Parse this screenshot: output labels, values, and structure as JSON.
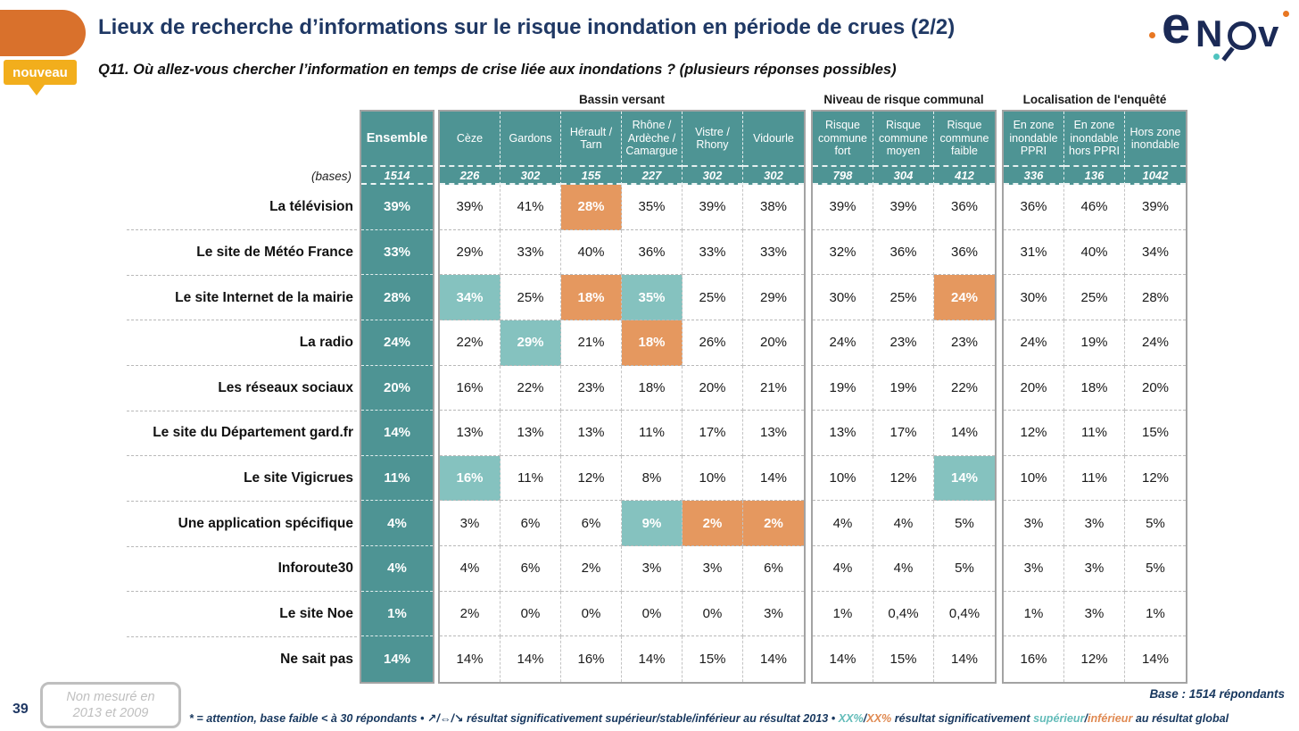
{
  "header": {
    "title": "Lieux de recherche d’informations sur le risque inondation en période de crues (2/2)",
    "badge": "nouveau",
    "question": "Q11. Où allez-vous chercher l’information en temps de crise liée aux inondations ? (plusieurs réponses possibles)"
  },
  "logo": {
    "letters": [
      "e",
      "N",
      "v"
    ]
  },
  "table": {
    "bases_label": "(bases)",
    "group_offsets": [
      0,
      1,
      7,
      10
    ],
    "groups": [
      {
        "title": "",
        "cols": [
          {
            "label": "Ensemble",
            "base": "1514"
          }
        ]
      },
      {
        "title": "Bassin versant",
        "cols": [
          {
            "label": "Cèze",
            "base": "226"
          },
          {
            "label": "Gardons",
            "base": "302"
          },
          {
            "label": "Hérault / Tarn",
            "base": "155"
          },
          {
            "label": "Rhône / Ardèche / Camargue",
            "base": "227"
          },
          {
            "label": "Vistre / Rhony",
            "base": "302"
          },
          {
            "label": "Vidourle",
            "base": "302"
          }
        ]
      },
      {
        "title": "Niveau de risque communal",
        "cols": [
          {
            "label": "Risque commune fort",
            "base": "798"
          },
          {
            "label": "Risque commune moyen",
            "base": "304"
          },
          {
            "label": "Risque commune faible",
            "base": "412"
          }
        ]
      },
      {
        "title": "Localisation de l'enquêté",
        "cols": [
          {
            "label": "En zone inondable PPRI",
            "base": "336"
          },
          {
            "label": "En zone inondable hors PPRI",
            "base": "136"
          },
          {
            "label": "Hors zone inondable",
            "base": "1042"
          }
        ]
      }
    ],
    "rows": [
      {
        "label": "La télévision",
        "values": [
          "39%",
          "39%",
          "41%",
          "28%",
          "35%",
          "39%",
          "38%",
          "39%",
          "39%",
          "36%",
          "36%",
          "46%",
          "39%"
        ],
        "hl": {
          "3": "low"
        }
      },
      {
        "label": "Le site de Météo France",
        "values": [
          "33%",
          "29%",
          "33%",
          "40%",
          "36%",
          "33%",
          "33%",
          "32%",
          "36%",
          "36%",
          "31%",
          "40%",
          "34%"
        ],
        "hl": {}
      },
      {
        "label": "Le site Internet de la mairie",
        "values": [
          "28%",
          "34%",
          "25%",
          "18%",
          "35%",
          "25%",
          "29%",
          "30%",
          "25%",
          "24%",
          "30%",
          "25%",
          "28%"
        ],
        "hl": {
          "1": "high",
          "3": "low",
          "4": "high",
          "9": "low"
        }
      },
      {
        "label": "La radio",
        "values": [
          "24%",
          "22%",
          "29%",
          "21%",
          "18%",
          "26%",
          "20%",
          "24%",
          "23%",
          "23%",
          "24%",
          "19%",
          "24%"
        ],
        "hl": {
          "2": "high",
          "4": "low"
        }
      },
      {
        "label": "Les réseaux sociaux",
        "values": [
          "20%",
          "16%",
          "22%",
          "23%",
          "18%",
          "20%",
          "21%",
          "19%",
          "19%",
          "22%",
          "20%",
          "18%",
          "20%"
        ],
        "hl": {}
      },
      {
        "label": "Le site du Département gard.fr",
        "values": [
          "14%",
          "13%",
          "13%",
          "13%",
          "11%",
          "17%",
          "13%",
          "13%",
          "17%",
          "14%",
          "12%",
          "11%",
          "15%"
        ],
        "hl": {}
      },
      {
        "label": "Le site Vigicrues",
        "values": [
          "11%",
          "16%",
          "11%",
          "12%",
          "8%",
          "10%",
          "14%",
          "10%",
          "12%",
          "14%",
          "10%",
          "11%",
          "12%"
        ],
        "hl": {
          "1": "high",
          "9": "high"
        }
      },
      {
        "label": "Une application spécifique",
        "values": [
          "4%",
          "3%",
          "6%",
          "6%",
          "9%",
          "2%",
          "2%",
          "4%",
          "4%",
          "5%",
          "3%",
          "3%",
          "5%"
        ],
        "hl": {
          "4": "high",
          "5": "low",
          "6": "low"
        }
      },
      {
        "label": "Inforoute30",
        "values": [
          "4%",
          "4%",
          "6%",
          "2%",
          "3%",
          "3%",
          "6%",
          "4%",
          "4%",
          "5%",
          "3%",
          "3%",
          "5%"
        ],
        "hl": {}
      },
      {
        "label": "Le site Noe",
        "values": [
          "1%",
          "2%",
          "0%",
          "0%",
          "0%",
          "0%",
          "3%",
          "1%",
          "0,4%",
          "0,4%",
          "1%",
          "3%",
          "1%"
        ],
        "hl": {}
      },
      {
        "label": "Ne sait pas",
        "values": [
          "14%",
          "14%",
          "14%",
          "16%",
          "14%",
          "15%",
          "14%",
          "14%",
          "15%",
          "14%",
          "16%",
          "12%",
          "14%"
        ],
        "hl": {}
      }
    ]
  },
  "footer": {
    "page_number": "39",
    "note_lines": [
      "Non mesuré en",
      "2013 et 2009"
    ],
    "base_note": "Base : 1514 répondants",
    "legend": [
      {
        "text": "* = attention, base faible < à 30 répondants • ↗/⇔/↘ résultat significativement supérieur/stable/inférieur au résultat 2013 • ",
        "color": "navy"
      },
      {
        "text": "XX%",
        "color": "teal"
      },
      {
        "text": "/",
        "color": "navy"
      },
      {
        "text": "XX%",
        "color": "orange"
      },
      {
        "text": " résultat significativement ",
        "color": "navy"
      },
      {
        "text": "supérieur",
        "color": "teal"
      },
      {
        "text": "/",
        "color": "navy"
      },
      {
        "text": "inférieur",
        "color": "orange"
      },
      {
        "text": " au résultat global",
        "color": "navy"
      }
    ]
  },
  "colors": {
    "table_teal": "#4e9494",
    "highlight_higher": "#85c2bf",
    "highlight_lower": "#e5985f",
    "title_navy": "#1f3864",
    "badge_amber": "#f2ae1c",
    "shape_orange": "#d9712c"
  }
}
